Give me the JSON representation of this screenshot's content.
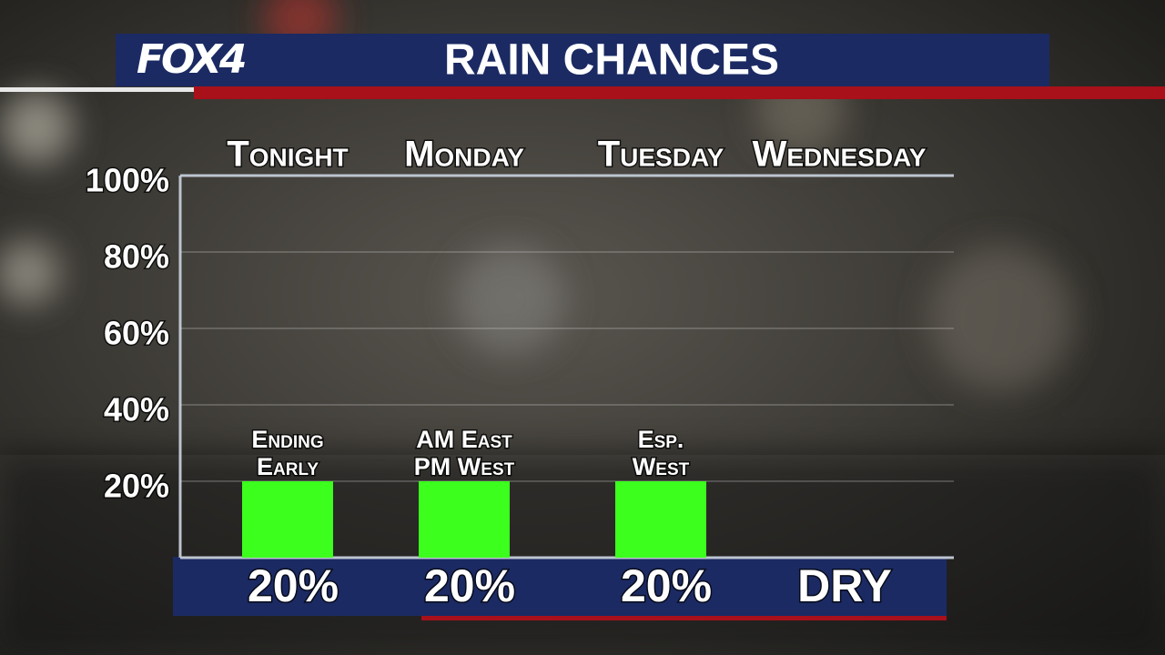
{
  "chart_data": {
    "type": "bar",
    "logo": "FOX4",
    "title": "RAIN CHANCES",
    "categories": [
      "Tonight",
      "Monday",
      "Tuesday",
      "Wednesday"
    ],
    "values": [
      20,
      20,
      20,
      0
    ],
    "value_labels": [
      "20%",
      "20%",
      "20%",
      "DRY"
    ],
    "annotations": [
      "Ending Early",
      "AM East PM West",
      "Esp. West",
      null
    ],
    "color": "#3cff1e",
    "ylim": [
      0,
      100
    ],
    "yticks": [
      {
        "value": 20,
        "label": "20%"
      },
      {
        "value": 40,
        "label": "40%"
      },
      {
        "value": 60,
        "label": "60%"
      },
      {
        "value": 80,
        "label": "80%"
      },
      {
        "value": 100,
        "label": "100%"
      }
    ],
    "grid": true
  }
}
